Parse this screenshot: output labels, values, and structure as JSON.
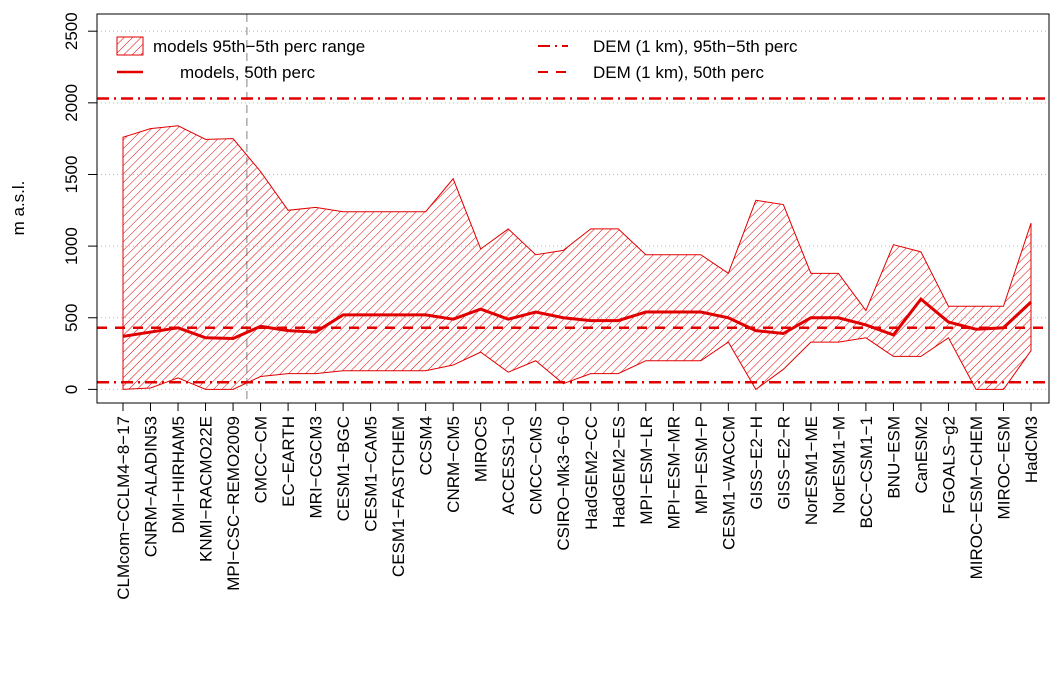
{
  "chart_data": {
    "type": "band-line",
    "y_label": "m a.s.l.",
    "categories": [
      "CLMcom−CCLM4−8−17",
      "CNRM−ALADIN53",
      "DMI−HIRHAM5",
      "KNMI−RACMO22E",
      "MPI−CSC−REMO2009",
      "CMCC−CM",
      "EC−EARTH",
      "MRI−CGCM3",
      "CESM1−BGC",
      "CESM1−CAM5",
      "CESM1−FASTCHEM",
      "CCSM4",
      "CNRM−CM5",
      "MIROC5",
      "ACCESS1−0",
      "CMCC−CMS",
      "CSIRO−Mk3−6−0",
      "HadGEM2−CC",
      "HadGEM2−ES",
      "MPI−ESM−LR",
      "MPI−ESM−MR",
      "MPI−ESM−P",
      "CESM1−WACCM",
      "GISS−E2−H",
      "GISS−E2−R",
      "NorESM1−ME",
      "NorESM1−M",
      "BCC−CSM1−1",
      "BNU−ESM",
      "CanESM2",
      "FGOALS−g2",
      "MIROC−ESM−CHEM",
      "MIROC−ESM",
      "HadCM3"
    ],
    "band": {
      "name": "models  95th−5th perc range",
      "color": "#e00000",
      "upper": [
        1760,
        1820,
        1840,
        1745,
        1750,
        1520,
        1250,
        1270,
        1240,
        1240,
        1240,
        1240,
        1470,
        980,
        1120,
        940,
        970,
        1120,
        1120,
        940,
        940,
        940,
        810,
        1320,
        1290,
        810,
        810,
        550,
        1010,
        960,
        580,
        580,
        580,
        1160
      ],
      "lower": [
        0,
        10,
        80,
        0,
        0,
        90,
        110,
        110,
        130,
        130,
        130,
        130,
        170,
        260,
        120,
        200,
        40,
        110,
        110,
        200,
        200,
        200,
        330,
        0,
        140,
        330,
        330,
        360,
        230,
        230,
        360,
        0,
        0,
        270
      ]
    },
    "series": [
      {
        "name": "models, 50th perc",
        "color": "#e00000",
        "values": [
          370,
          400,
          430,
          360,
          355,
          440,
          410,
          400,
          520,
          520,
          520,
          520,
          490,
          560,
          490,
          540,
          500,
          480,
          480,
          540,
          540,
          540,
          500,
          410,
          390,
          500,
          500,
          450,
          380,
          630,
          470,
          420,
          430,
          610
        ]
      }
    ],
    "hlines": [
      {
        "name": "DEM (1 km), 95th−5th perc",
        "color": "#e00000",
        "style": "dashdot",
        "values": [
          2030,
          50
        ]
      },
      {
        "name": "DEM (1 km), 50th perc",
        "color": "#e00000",
        "style": "dashed",
        "values": [
          430
        ]
      }
    ],
    "ylim": [
      -95,
      2620
    ],
    "yticks": [
      0,
      500,
      1000,
      1500,
      2000,
      2500
    ],
    "grid": true
  }
}
